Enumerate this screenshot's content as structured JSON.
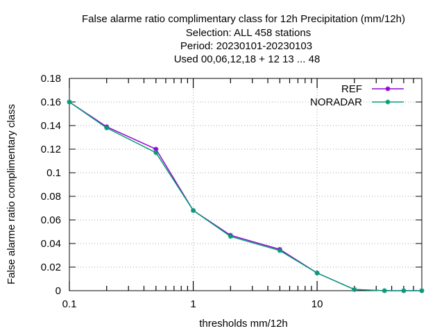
{
  "chart_data": {
    "type": "line",
    "title_lines": [
      "False alarme ratio complimentary class  for 12h Precipitation (mm/12h)",
      "Selection: ALL    458 stations",
      "Period: 20230101-20230103",
      "Used  00,06,12,18 + 12 13 ... 48"
    ],
    "xlabel": "thresholds mm/12h",
    "ylabel": "False alarme ratio complimentary class",
    "x_scale": "log",
    "xlim": [
      0.1,
      70
    ],
    "ylim": [
      0,
      0.18
    ],
    "x_tick_labels": [
      "0.1",
      "1",
      "10"
    ],
    "y_tick_labels": [
      "0",
      "0.02",
      "0.04",
      "0.06",
      "0.08",
      "0.1",
      "0.12",
      "0.14",
      "0.16",
      "0.18"
    ],
    "grid": true,
    "legend_position": "top-right",
    "x": [
      0.1,
      0.2,
      0.5,
      1,
      2,
      5,
      10,
      20,
      35,
      50,
      70
    ],
    "series": [
      {
        "name": "REF",
        "color": "#9400d3",
        "values": [
          0.16,
          0.139,
          0.12,
          0.068,
          0.047,
          0.035,
          0.015,
          0.001,
          0.0,
          0.0,
          0.0
        ]
      },
      {
        "name": "NORADAR",
        "color": "#009e73",
        "values": [
          0.16,
          0.138,
          0.117,
          0.068,
          0.046,
          0.034,
          0.015,
          0.001,
          0.0,
          0.0,
          0.0
        ]
      }
    ]
  }
}
